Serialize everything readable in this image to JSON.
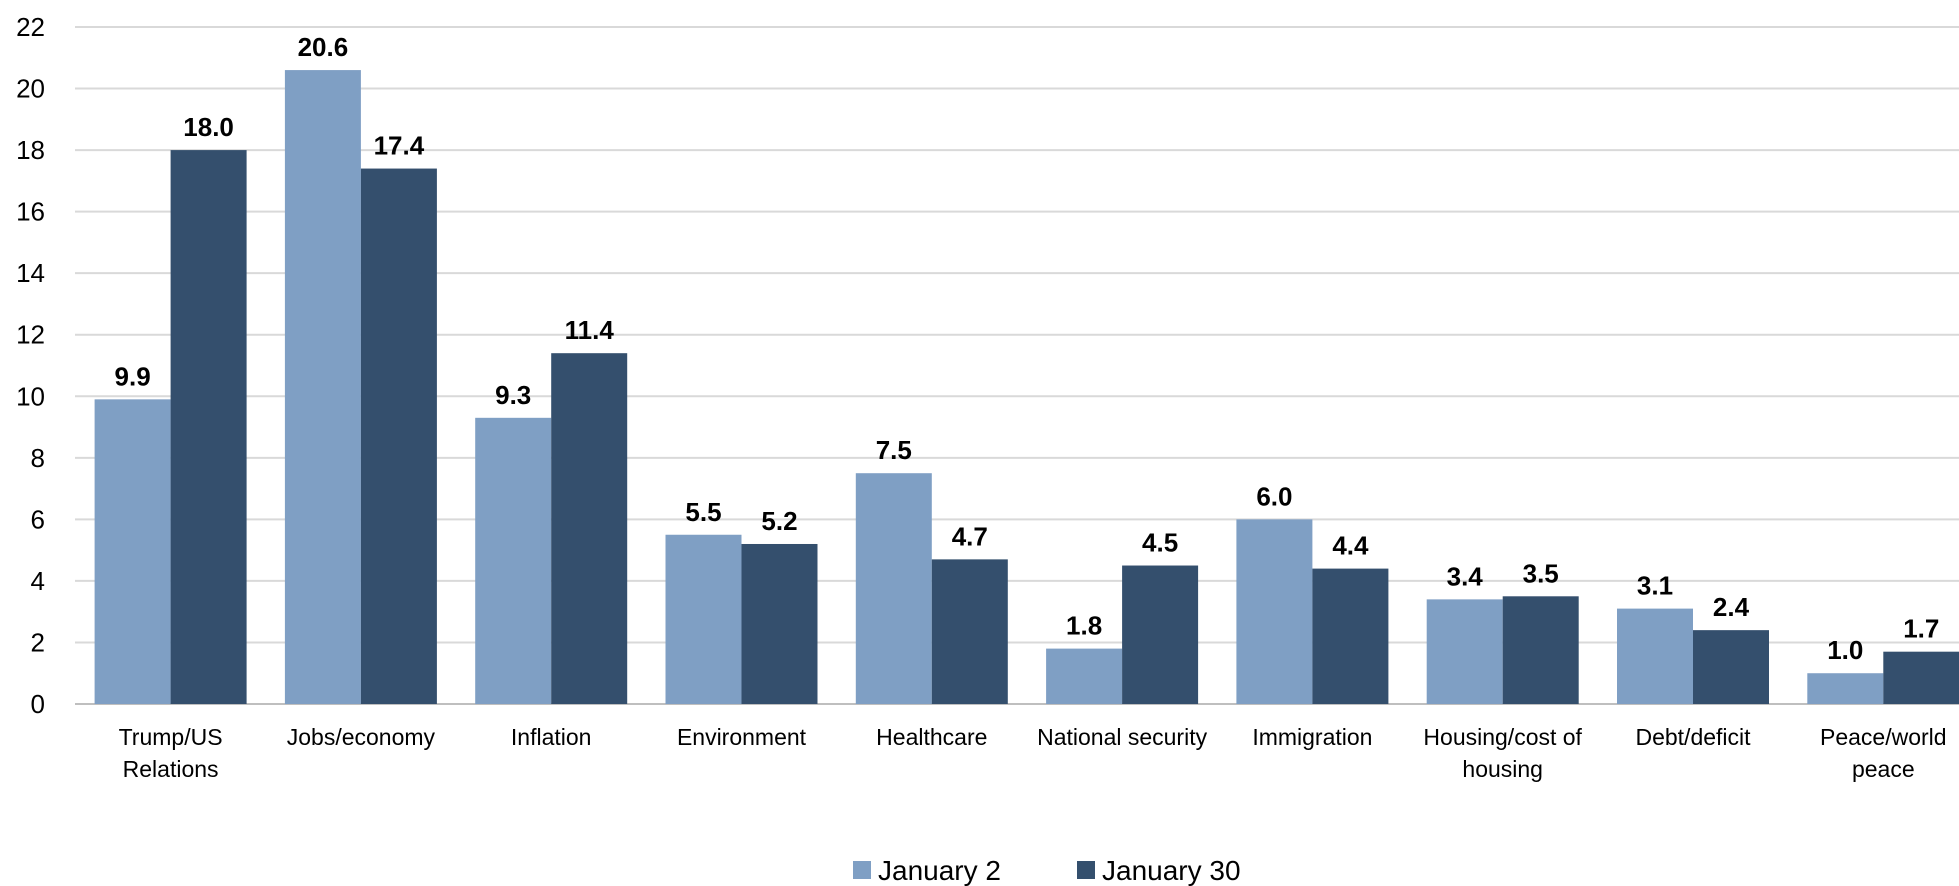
{
  "chart_data": {
    "type": "bar",
    "categories": [
      [
        "Trump/US",
        "Relations"
      ],
      [
        "Jobs/economy"
      ],
      [
        "Inflation"
      ],
      [
        "Environment"
      ],
      [
        "Healthcare"
      ],
      [
        "National security"
      ],
      [
        "Immigration"
      ],
      [
        "Housing/cost of",
        "housing"
      ],
      [
        "Debt/deficit"
      ],
      [
        "Peace/world",
        "peace"
      ]
    ],
    "series": [
      {
        "name": "January 2",
        "color": "#7f9fc4",
        "values": [
          9.9,
          20.6,
          9.3,
          5.5,
          7.5,
          1.8,
          6.0,
          3.4,
          3.1,
          1.0
        ]
      },
      {
        "name": "January 30",
        "color": "#344f6d",
        "values": [
          18.0,
          17.4,
          11.4,
          5.2,
          4.7,
          4.5,
          4.4,
          3.5,
          2.4,
          1.7
        ]
      }
    ],
    "ylim": [
      0,
      22
    ],
    "yticks": [
      0,
      2,
      4,
      6,
      8,
      10,
      12,
      14,
      16,
      18,
      20,
      22
    ],
    "title": "",
    "xlabel": "",
    "ylabel": "",
    "grid": true,
    "legend_position": "bottom-center",
    "data_labels": true
  }
}
